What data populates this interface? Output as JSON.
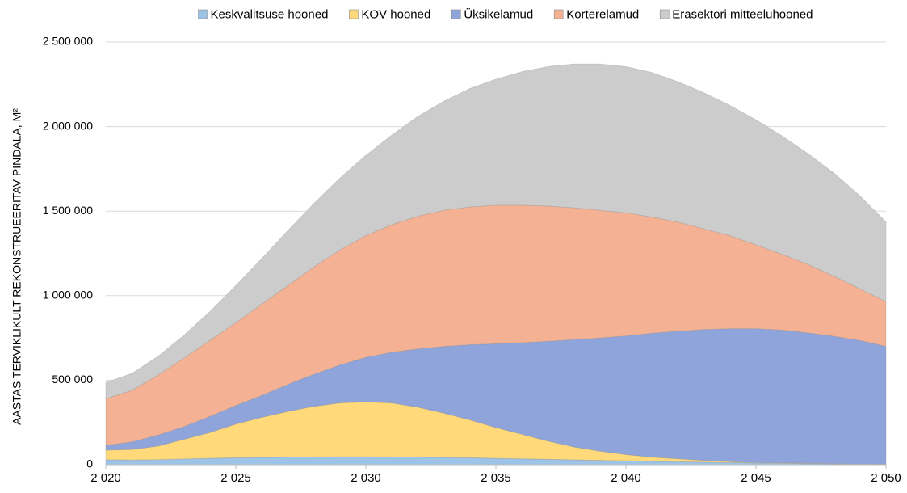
{
  "chart_data": {
    "type": "stacked_area",
    "y_label": "AASTAS TERVIKLIKULT REKONSTRUEERITAV PINDALA, M²",
    "x": [
      2020,
      2021,
      2022,
      2023,
      2024,
      2025,
      2026,
      2027,
      2028,
      2029,
      2030,
      2031,
      2032,
      2033,
      2034,
      2035,
      2036,
      2037,
      2038,
      2039,
      2040,
      2041,
      2042,
      2043,
      2044,
      2045,
      2046,
      2047,
      2048,
      2049,
      2050
    ],
    "xlim": [
      2020,
      2050
    ],
    "xticks": [
      {
        "value": 2020,
        "label": "2 020"
      },
      {
        "value": 2025,
        "label": "2 025"
      },
      {
        "value": 2030,
        "label": "2 030"
      },
      {
        "value": 2035,
        "label": "2 035"
      },
      {
        "value": 2040,
        "label": "2 040"
      },
      {
        "value": 2045,
        "label": "2 045"
      },
      {
        "value": 2050,
        "label": "2 050"
      }
    ],
    "ylim": [
      0,
      2500000
    ],
    "yticks": [
      0,
      {
        "value": 500000,
        "label": "500 000"
      },
      {
        "value": 1000000,
        "label": "1 000 000"
      },
      {
        "value": 1500000,
        "label": "1 500 000"
      },
      {
        "value": 2000000,
        "label": "2 000 000"
      },
      {
        "value": 2500000,
        "label": "2 500 000"
      }
    ],
    "grid": true,
    "legend": "top",
    "series": [
      {
        "name": "Keskvalitsuse hooned",
        "color": "#9dc3e6",
        "values": [
          30000,
          28000,
          30000,
          34000,
          38000,
          41000,
          43000,
          45000,
          46000,
          47000,
          47000,
          46000,
          45000,
          43000,
          41000,
          38000,
          35000,
          32000,
          29000,
          26000,
          23000,
          20000,
          18000,
          15000,
          13000,
          10000,
          8000,
          6000,
          5000,
          3000,
          2000
        ]
      },
      {
        "name": "KOV hooned",
        "color": "#ffd97a",
        "values": [
          56000,
          62000,
          80000,
          116000,
          152000,
          199000,
          237000,
          270000,
          299000,
          318000,
          325000,
          319000,
          295000,
          262000,
          224000,
          182000,
          145000,
          108000,
          76000,
          54000,
          37000,
          25000,
          17000,
          10000,
          5000,
          2000,
          2000,
          2000,
          1000,
          1000,
          1000
        ]
      },
      {
        "name": "Üksikelamud",
        "color": "#8ea4da",
        "values": [
          29000,
          45000,
          65000,
          75000,
          95000,
          110000,
          130000,
          160000,
          190000,
          225000,
          263000,
          300000,
          345000,
          395000,
          445000,
          495000,
          542000,
          590000,
          635000,
          670000,
          702000,
          733000,
          755000,
          775000,
          787000,
          793000,
          787000,
          772000,
          754000,
          731000,
          697000
        ]
      },
      {
        "name": "Korterelamud",
        "color": "#f4b193",
        "values": [
          275000,
          305000,
          355000,
          405000,
          450000,
          490000,
          540000,
          585000,
          635000,
          680000,
          720000,
          755000,
          785000,
          805000,
          815000,
          820000,
          813000,
          800000,
          780000,
          755000,
          728000,
          687000,
          645000,
          595000,
          550000,
          495000,
          448000,
          405000,
          355000,
          305000,
          265000
        ]
      },
      {
        "name": "Erasektori mitteeluhooned",
        "color": "#cccccc",
        "values": [
          95000,
          100000,
          110000,
          135000,
          170000,
          220000,
          270000,
          325000,
          375000,
          425000,
          475000,
          530000,
          590000,
          645000,
          700000,
          745000,
          790000,
          825000,
          850000,
          865000,
          865000,
          855000,
          830000,
          805000,
          770000,
          740000,
          700000,
          655000,
          610000,
          550000,
          470000
        ]
      }
    ]
  }
}
